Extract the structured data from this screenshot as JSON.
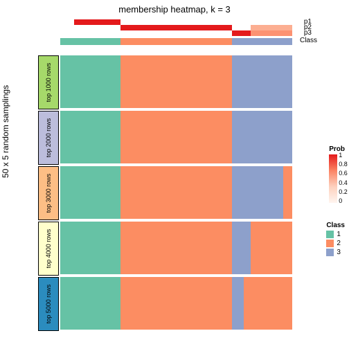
{
  "title": "membership heatmap, k = 3",
  "ylabel": "50 x 5 random samplings",
  "colors": {
    "class1": "#66c2a5",
    "class2": "#fc8d62",
    "class3": "#8da0cb",
    "prob0": "#fff5f0",
    "prob02": "#fdd1be",
    "prob05": "#fb8363",
    "prob1": "#e41a1c",
    "white": "#ffffff",
    "rowLabels": [
      "#a6d96a",
      "#bcbddc",
      "#fdbe85",
      "#ffffcc",
      "#2b8cbe"
    ]
  },
  "topAnnotations": {
    "p1": {
      "label": "p1",
      "segments": [
        {
          "w": 0.06,
          "c": "#ffffff"
        },
        {
          "w": 0.2,
          "c": "#e41a1c"
        },
        {
          "w": 0.56,
          "c": "#ffffff"
        },
        {
          "w": 0.18,
          "c": "#ffffff"
        }
      ]
    },
    "p2": {
      "label": "p2",
      "segments": [
        {
          "w": 0.26,
          "c": "#ffffff"
        },
        {
          "w": 0.48,
          "c": "#e41a1c"
        },
        {
          "w": 0.08,
          "c": "#ffffff"
        },
        {
          "w": 0.18,
          "c": "#fcae91"
        }
      ]
    },
    "p3": {
      "label": "p3",
      "segments": [
        {
          "w": 0.74,
          "c": "#ffffff"
        },
        {
          "w": 0.08,
          "c": "#e41a1c"
        },
        {
          "w": 0.18,
          "c": "#fc9272"
        }
      ]
    },
    "class": {
      "label": "Class",
      "segments": [
        {
          "w": 0.26,
          "c": "#66c2a5"
        },
        {
          "w": 0.48,
          "c": "#fc8d62"
        },
        {
          "w": 0.26,
          "c": "#8da0cb"
        }
      ]
    }
  },
  "rows": [
    {
      "label": "top 1000 rows",
      "segments": [
        {
          "w": 0.26,
          "c": "#66c2a5"
        },
        {
          "w": 0.48,
          "c": "#fc8d62"
        },
        {
          "w": 0.26,
          "c": "#8da0cb"
        }
      ]
    },
    {
      "label": "top 2000 rows",
      "segments": [
        {
          "w": 0.26,
          "c": "#66c2a5"
        },
        {
          "w": 0.48,
          "c": "#fc8d62"
        },
        {
          "w": 0.26,
          "c": "#8da0cb"
        }
      ]
    },
    {
      "label": "top 3000 rows",
      "segments": [
        {
          "w": 0.26,
          "c": "#66c2a5"
        },
        {
          "w": 0.48,
          "c": "#fc8d62"
        },
        {
          "w": 0.22,
          "c": "#8da0cb"
        },
        {
          "w": 0.04,
          "c": "#fc8d62"
        }
      ]
    },
    {
      "label": "top 4000 rows",
      "segments": [
        {
          "w": 0.26,
          "c": "#66c2a5"
        },
        {
          "w": 0.48,
          "c": "#fc8d62"
        },
        {
          "w": 0.08,
          "c": "#8da0cb"
        },
        {
          "w": 0.18,
          "c": "#fc8d62"
        }
      ]
    },
    {
      "label": "top 5000 rows",
      "segments": [
        {
          "w": 0.26,
          "c": "#66c2a5"
        },
        {
          "w": 0.48,
          "c": "#fc8d62"
        },
        {
          "w": 0.05,
          "c": "#8da0cb"
        },
        {
          "w": 0.21,
          "c": "#fc8d62"
        }
      ]
    }
  ],
  "probLegend": {
    "title": "Prob",
    "ticks": [
      {
        "v": "1",
        "pos": 0
      },
      {
        "v": "0.8",
        "pos": 0.2
      },
      {
        "v": "0.6",
        "pos": 0.4
      },
      {
        "v": "0.4",
        "pos": 0.6
      },
      {
        "v": "0.2",
        "pos": 0.8
      },
      {
        "v": "0",
        "pos": 1
      }
    ]
  },
  "classLegend": {
    "title": "Class",
    "items": [
      {
        "label": "1",
        "color": "#66c2a5"
      },
      {
        "label": "2",
        "color": "#fc8d62"
      },
      {
        "label": "3",
        "color": "#8da0cb"
      }
    ]
  }
}
